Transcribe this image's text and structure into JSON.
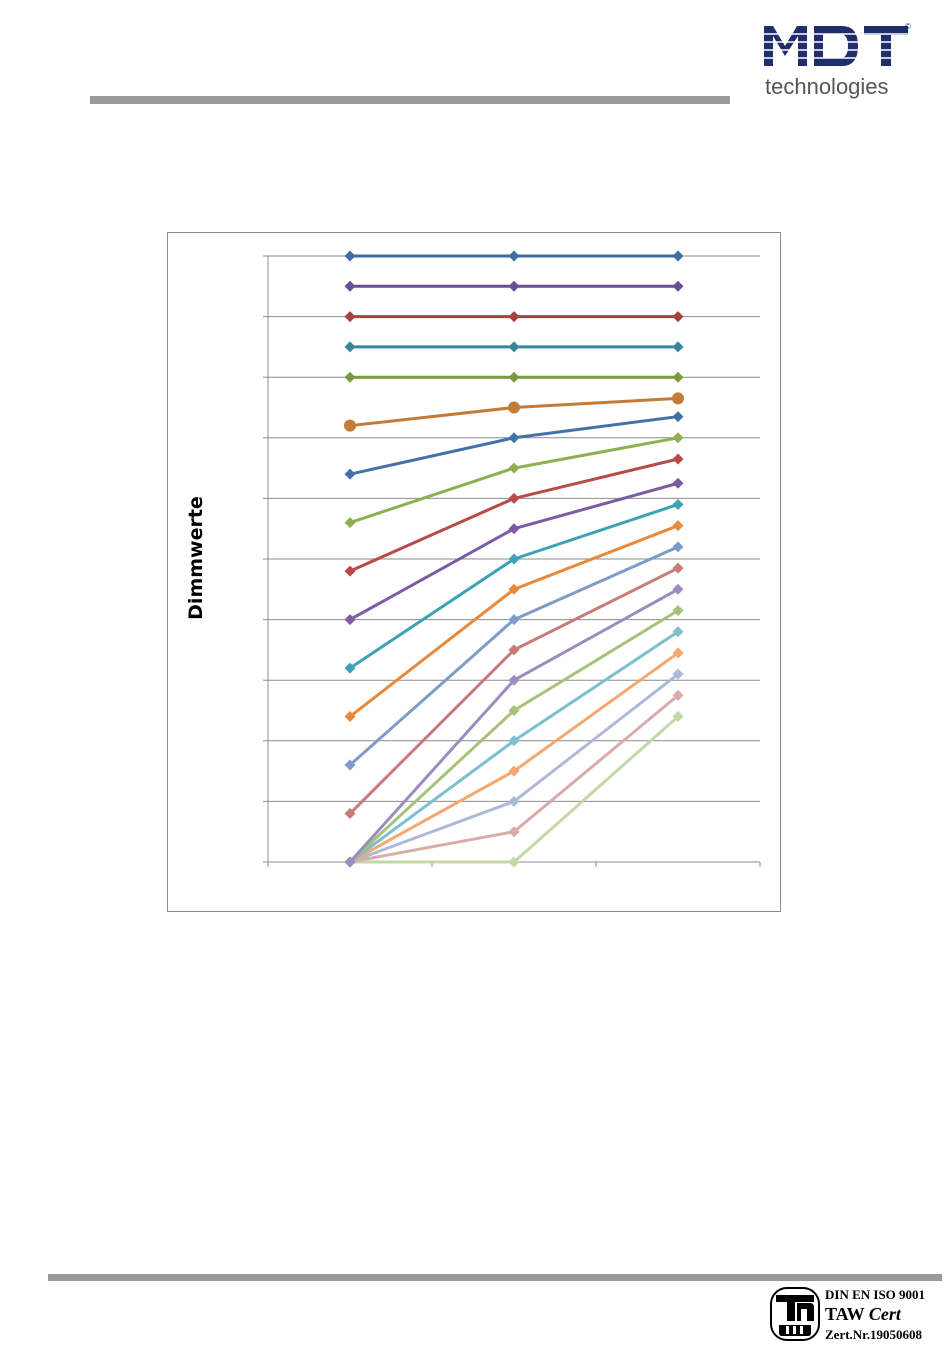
{
  "header": {
    "logo_text": "MDT",
    "logo_tagline": "technologies",
    "logo_registered": "©",
    "colors": {
      "logo": "#1f2d6b",
      "tagline": "#555555",
      "rule": "#9a9a9a"
    }
  },
  "footer": {
    "cert_line_1": "DIN EN ISO 9001",
    "cert_line_2a": "TAW",
    "cert_line_2b": "Cert",
    "cert_line_3": "Zert.Nr.19050608",
    "cert_logo": "taw-seal-icon"
  },
  "chart_data": {
    "type": "line",
    "title": "",
    "xlabel": "",
    "ylabel": "Dimmwerte",
    "categories": [
      "1",
      "2",
      "3"
    ],
    "ylim": [
      0,
      100
    ],
    "yticks": [
      0,
      10,
      20,
      30,
      40,
      50,
      60,
      70,
      80,
      90,
      100
    ],
    "grid": true,
    "legend": "none",
    "tick_labels_visible": false,
    "series": [
      {
        "values": [
          100,
          100,
          100
        ],
        "color": "#3f6ea3",
        "marker": "diamond"
      },
      {
        "values": [
          95,
          95,
          95
        ],
        "color": "#6b4d93",
        "marker": "diamond"
      },
      {
        "values": [
          90,
          90,
          90
        ],
        "color": "#a8403e",
        "marker": "diamond"
      },
      {
        "values": [
          85,
          85,
          85
        ],
        "color": "#36879a",
        "marker": "diamond"
      },
      {
        "values": [
          80,
          80,
          80
        ],
        "color": "#7a9a3e",
        "marker": "diamond"
      },
      {
        "values": [
          72,
          75,
          76.5
        ],
        "color": "#c47a38",
        "marker": "circle"
      },
      {
        "values": [
          64,
          70,
          73.5
        ],
        "color": "#4472a8",
        "marker": "diamond"
      },
      {
        "values": [
          56,
          65,
          70
        ],
        "color": "#8fb050",
        "marker": "diamond"
      },
      {
        "values": [
          48,
          60,
          66.5
        ],
        "color": "#b84a48",
        "marker": "diamond"
      },
      {
        "values": [
          40,
          55,
          62.5
        ],
        "color": "#7b5ca3",
        "marker": "diamond"
      },
      {
        "values": [
          32,
          50,
          59
        ],
        "color": "#3ea2b6",
        "marker": "diamond"
      },
      {
        "values": [
          24,
          45,
          55.5
        ],
        "color": "#e88a3c",
        "marker": "diamond"
      },
      {
        "values": [
          16,
          40,
          52
        ],
        "color": "#7f9bc8",
        "marker": "diamond"
      },
      {
        "values": [
          8,
          35,
          48.5
        ],
        "color": "#c97a7a",
        "marker": "diamond"
      },
      {
        "values": [
          0,
          30,
          45
        ],
        "color": "#9d8cbd",
        "marker": "diamond"
      },
      {
        "values": [
          0,
          25,
          41.5
        ],
        "color": "#a5c278",
        "marker": "diamond"
      },
      {
        "values": [
          0,
          20,
          38
        ],
        "color": "#7cbfd0",
        "marker": "diamond"
      },
      {
        "values": [
          0,
          15,
          34.5
        ],
        "color": "#f3a870",
        "marker": "diamond"
      },
      {
        "values": [
          0,
          10,
          31
        ],
        "color": "#aeb9d8",
        "marker": "diamond"
      },
      {
        "values": [
          0,
          5,
          27.5
        ],
        "color": "#d9acab",
        "marker": "diamond"
      },
      {
        "values": [
          0,
          0,
          24
        ],
        "color": "#c3d8a6",
        "marker": "diamond"
      }
    ]
  }
}
